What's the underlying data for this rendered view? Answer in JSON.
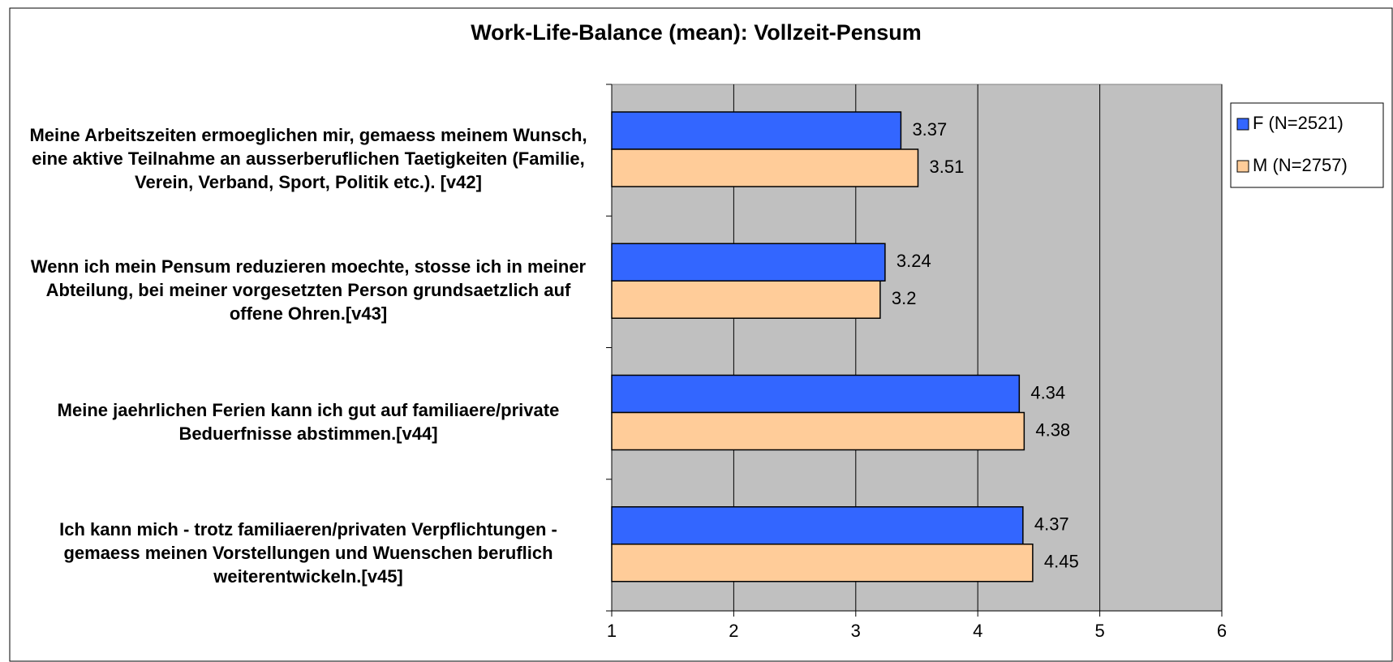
{
  "chart_data": {
    "type": "hbar",
    "title": "Work-Life-Balance (mean): Vollzeit-Pensum",
    "categories": [
      "Meine Arbeitszeiten ermoeglichen mir, gemaess meinem Wunsch, eine aktive Teilnahme an ausserberuflichen Taetigkeiten (Familie, Verein, Verband, Sport, Politik etc.). [v42]",
      "Wenn ich mein Pensum reduzieren moechte, stosse ich in meiner Abteilung, bei meiner vorgesetzten Person grundsaetzlich auf offene Ohren.[v43]",
      "Meine jaehrlichen Ferien kann ich gut auf familiaere/private Beduerfnisse abstimmen.[v44]",
      "Ich kann mich - trotz familiaeren/privaten Verpflichtungen - gemaess meinen Vorstellungen und Wuenschen beruflich weiterentwickeln.[v45]"
    ],
    "series": [
      {
        "name": "F (N=2521)",
        "color": "#3366ff",
        "values": [
          3.37,
          3.24,
          4.34,
          4.37
        ]
      },
      {
        "name": "M (N=2757)",
        "color": "#ffcc99",
        "values": [
          3.51,
          3.2,
          4.38,
          4.45
        ]
      }
    ],
    "xlim": [
      1,
      6
    ],
    "xticks": [
      1,
      2,
      3,
      4,
      5,
      6
    ],
    "grid": true,
    "legend": "right"
  }
}
